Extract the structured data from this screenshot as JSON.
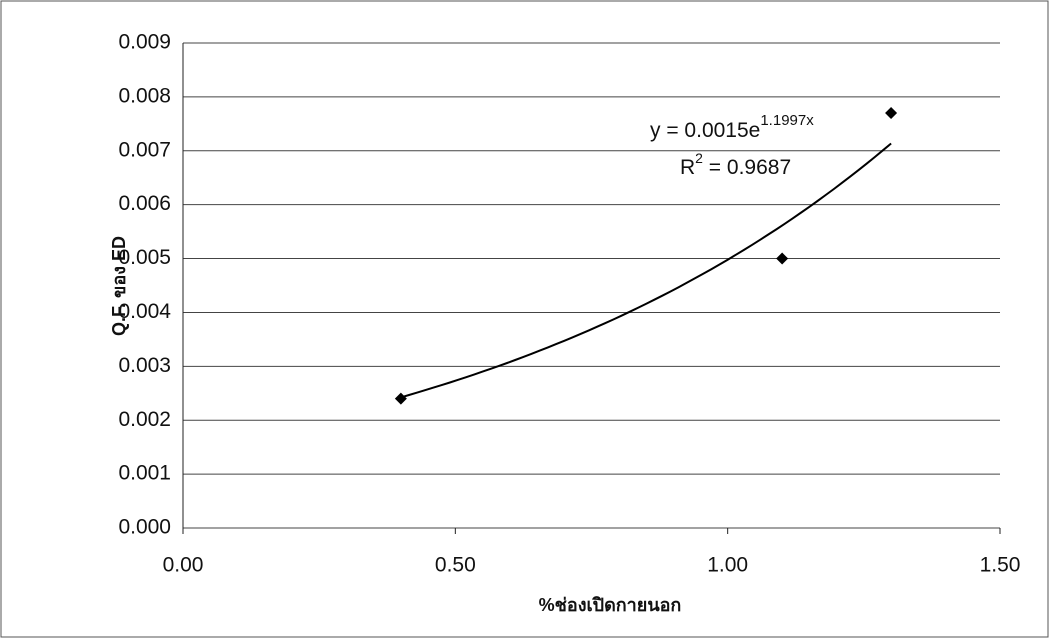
{
  "chart_data": {
    "type": "scatter",
    "x_label": "%ช่องเปิดกายนอก",
    "y_label": "Q.F. ของ ED",
    "x": [
      0.4,
      1.1,
      1.3
    ],
    "values": [
      0.0024,
      0.005,
      0.0077
    ],
    "color": "#000000",
    "xlim": [
      0,
      1.5
    ],
    "xticks": [
      {
        "value": 0,
        "label": "0.00"
      },
      {
        "value": 0.5,
        "label": "0.50"
      },
      {
        "value": 1,
        "label": "1.00"
      },
      {
        "value": 1.5,
        "label": "1.50"
      }
    ],
    "ylim": [
      0,
      0.009
    ],
    "yticks": [
      {
        "value": 0,
        "label": "0.000"
      },
      {
        "value": 0.001,
        "label": "0.001"
      },
      {
        "value": 0.002,
        "label": "0.002"
      },
      {
        "value": 0.003,
        "label": "0.003"
      },
      {
        "value": 0.004,
        "label": "0.004"
      },
      {
        "value": 0.005,
        "label": "0.005"
      },
      {
        "value": 0.006,
        "label": "0.006"
      },
      {
        "value": 0.007,
        "label": "0.007"
      },
      {
        "value": 0.008,
        "label": "0.008"
      },
      {
        "value": 0.009,
        "label": "0.009"
      }
    ],
    "grid": true,
    "trendline": {
      "a": 0.0015,
      "b": 1.1997,
      "equation_base": "y = 0.0015e",
      "equation_exponent": "1.1997x",
      "r2_base": "R",
      "r2_exponent": "2",
      "r2_rest": " = 0.9687"
    }
  }
}
